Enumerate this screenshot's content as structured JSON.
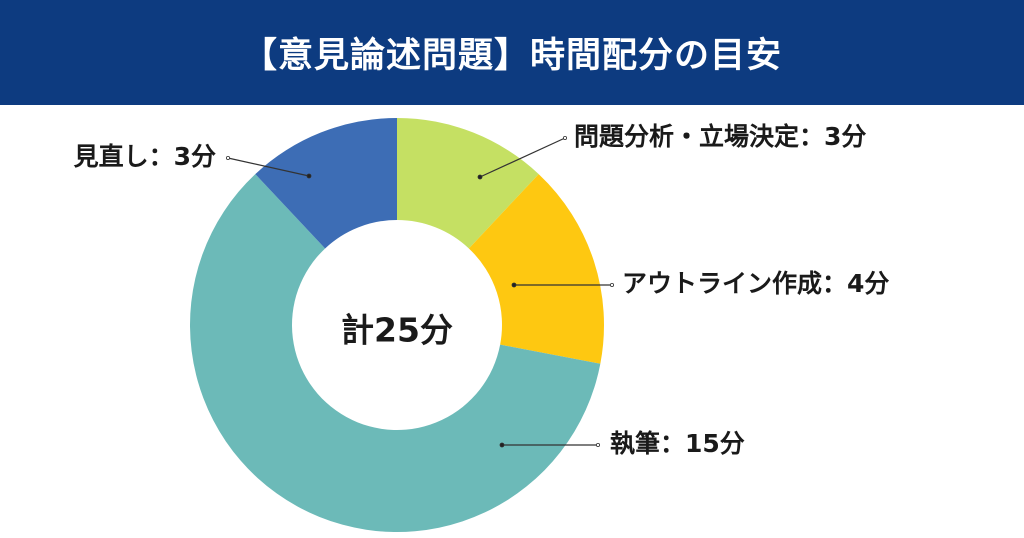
{
  "title": "【意見論述問題】時間配分の目安",
  "chart_data": {
    "type": "pie",
    "donut": true,
    "center_label": "計25分",
    "total": 25,
    "slices": [
      {
        "label": "問題分析・立場決定：3分",
        "value": 3,
        "color": "#c5e063"
      },
      {
        "label": "アウトライン作成：4分",
        "value": 4,
        "color": "#fec811"
      },
      {
        "label": "執筆：15分",
        "value": 15,
        "color": "#6cbab8"
      },
      {
        "label": "見直し：3分",
        "value": 3,
        "color": "#3d6db5"
      }
    ]
  }
}
